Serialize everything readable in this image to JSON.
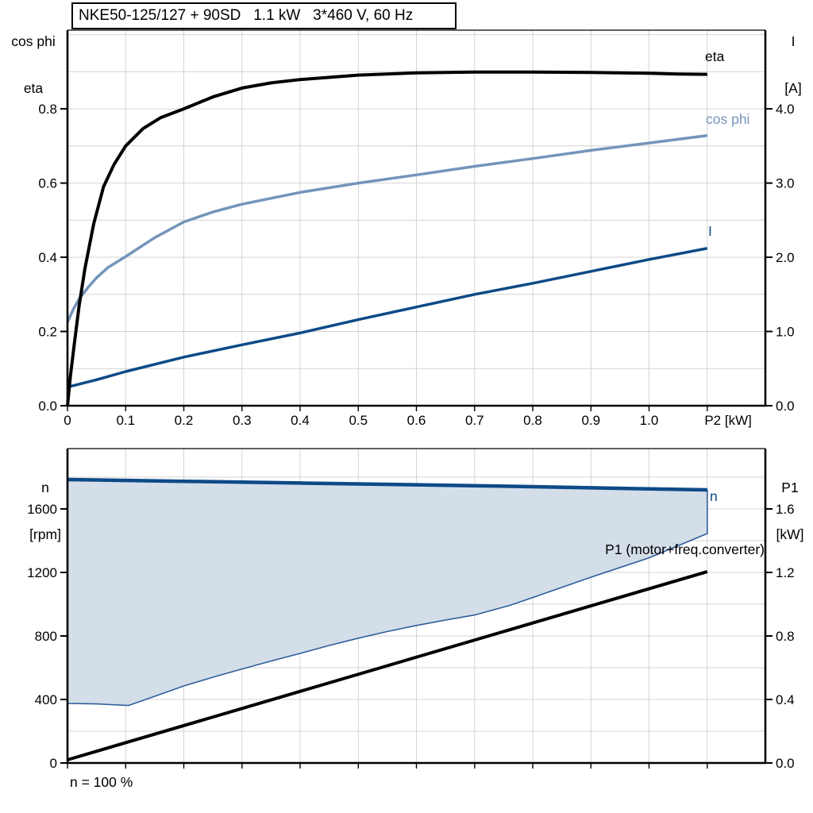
{
  "title_box": {
    "text": "NKE50-125/127 + 90SD   1.1 kW   3*460 V, 60 Hz"
  },
  "colors": {
    "black": "#000000",
    "navy": "#0d4a87",
    "steel": "#7495ba",
    "fill": "#d3dee9",
    "fill_edge": "#2e5d99",
    "grid": "#d4d4d4",
    "frame": "#000000"
  },
  "axis_corner_labels": {
    "top_left": [
      "cos phi",
      "eta"
    ],
    "top_right": [
      "I",
      "[A]"
    ],
    "bottom_left": [
      "n",
      "[rpm]"
    ],
    "bottom_right": [
      "P1",
      "[kW]"
    ]
  },
  "curve_labels": {
    "eta": "eta",
    "cos_phi": "cos phi",
    "current": "I",
    "speed": "n",
    "p1": "P1 (motor+freq.converter)"
  },
  "annotation": {
    "speed_100": "n = 100 %"
  },
  "chart_data": [
    {
      "type": "line",
      "title": "NKE50-125/127 + 90SD 1.1 kW 3*460 V, 60 Hz",
      "x_axis": {
        "min": 0,
        "max": 1.2,
        "ticks": [
          0,
          0.1,
          0.2,
          0.3,
          0.4,
          0.5,
          0.6,
          0.7,
          0.8,
          0.9,
          1.0,
          1.1
        ],
        "tick_labels": [
          "0",
          "0.1",
          "0.2",
          "0.3",
          "0.4",
          "0.5",
          "0.6",
          "0.7",
          "0.8",
          "0.9",
          "1.0"
        ],
        "grid": [
          0.1,
          0.2,
          0.3,
          0.4,
          0.5,
          0.6,
          0.7,
          0.8,
          0.9,
          1.0,
          1.1
        ],
        "unit_label": "P2 [kW]",
        "unit_label_value": 1.136
      },
      "left_axis": {
        "min": 0,
        "max": 1.012,
        "ticks": [
          0,
          0.2,
          0.4,
          0.6,
          0.8
        ],
        "tick_labels": [
          "0.0",
          "0.2",
          "0.4",
          "0.6",
          "0.8"
        ],
        "grid": [
          0.1,
          0.2,
          0.3,
          0.4,
          0.5,
          0.6,
          0.7,
          0.8,
          0.9,
          1.0
        ]
      },
      "right_axis": {
        "min": 0,
        "max": 5.06,
        "ticks": [
          0,
          1,
          2,
          3,
          4
        ],
        "tick_labels": [
          "0.0",
          "1.0",
          "2.0",
          "3.0",
          "4.0"
        ]
      },
      "series": [
        {
          "name": "I",
          "label": "I",
          "axis": "right",
          "color_key": "navy",
          "width": 3.5,
          "x": [
            0,
            0.05,
            0.1,
            0.2,
            0.3,
            0.4,
            0.5,
            0.6,
            0.7,
            0.8,
            0.9,
            1.0,
            1.1
          ],
          "y": [
            0.25,
            0.35,
            0.46,
            0.655,
            0.82,
            0.98,
            1.16,
            1.33,
            1.5,
            1.65,
            1.81,
            1.97,
            2.12
          ]
        },
        {
          "name": "cos phi",
          "label": "cos phi",
          "axis": "left",
          "color_key": "steel",
          "width": 3.5,
          "x": [
            0,
            0.01,
            0.02,
            0.035,
            0.05,
            0.07,
            0.1,
            0.15,
            0.2,
            0.25,
            0.3,
            0.4,
            0.5,
            0.6,
            0.7,
            0.8,
            0.9,
            1.0,
            1.1
          ],
          "y": [
            0.225,
            0.26,
            0.288,
            0.318,
            0.345,
            0.373,
            0.402,
            0.453,
            0.495,
            0.522,
            0.543,
            0.575,
            0.6,
            0.622,
            0.645,
            0.666,
            0.688,
            0.708,
            0.728
          ]
        },
        {
          "name": "eta",
          "label": "eta",
          "axis": "left",
          "color_key": "black",
          "width": 4,
          "x": [
            0,
            0.005,
            0.012,
            0.02,
            0.03,
            0.045,
            0.062,
            0.08,
            0.1,
            0.13,
            0.16,
            0.2,
            0.25,
            0.3,
            0.35,
            0.4,
            0.5,
            0.6,
            0.7,
            0.8,
            0.9,
            1.0,
            1.05,
            1.1
          ],
          "y": [
            0,
            0.08,
            0.17,
            0.27,
            0.37,
            0.49,
            0.59,
            0.65,
            0.7,
            0.747,
            0.776,
            0.8,
            0.832,
            0.856,
            0.87,
            0.879,
            0.891,
            0.897,
            0.899,
            0.899,
            0.898,
            0.896,
            0.894,
            0.893
          ]
        }
      ]
    },
    {
      "type": "line+area",
      "title": "Speed and input power",
      "x_axis": {
        "min": 0,
        "max": 1.2,
        "ticks": [
          0,
          0.1,
          0.2,
          0.3,
          0.4,
          0.5,
          0.6,
          0.7,
          0.8,
          0.9,
          1.0,
          1.1
        ],
        "tick_labels": [],
        "grid": [
          0.1,
          0.2,
          0.3,
          0.4,
          0.5,
          0.6,
          0.7,
          0.8,
          0.9,
          1.0,
          1.1
        ]
      },
      "left_axis": {
        "min": 0,
        "max": 1980,
        "ticks": [
          0,
          400,
          800,
          1200,
          1600
        ],
        "tick_labels": [
          "0",
          "400",
          "800",
          "1200",
          "1600"
        ],
        "grid": [
          200,
          400,
          600,
          800,
          1000,
          1200,
          1400,
          1600,
          1800
        ]
      },
      "right_axis": {
        "min": 0,
        "max": 1.98,
        "ticks": [
          0,
          0.4,
          0.8,
          1.2,
          1.6
        ],
        "tick_labels": [
          "0.0",
          "0.4",
          "0.8",
          "1.2",
          "1.6"
        ]
      },
      "area": {
        "upper": "n",
        "lower": "n_min",
        "fill_key": "fill",
        "edge_key": "fill_edge"
      },
      "series": [
        {
          "name": "n",
          "label": "n",
          "axis": "left",
          "color_key": "navy",
          "width": 4.5,
          "x": [
            0,
            0.2,
            0.4,
            0.6,
            0.8,
            1.0,
            1.1
          ],
          "y": [
            1785,
            1774,
            1763,
            1752,
            1740,
            1726,
            1720
          ]
        },
        {
          "name": "n_min",
          "label": "",
          "axis": "left",
          "color_key": "fill_edge",
          "width": 1.6,
          "role": "boundary",
          "x": [
            0,
            0.05,
            0.105,
            0.15,
            0.2,
            0.25,
            0.3,
            0.35,
            0.4,
            0.45,
            0.5,
            0.55,
            0.6,
            0.65,
            0.7,
            0.76,
            0.8,
            0.9,
            1.0,
            1.1
          ],
          "y": [
            375,
            372,
            362,
            420,
            485,
            540,
            592,
            642,
            690,
            740,
            786,
            828,
            866,
            900,
            932,
            992,
            1042,
            1170,
            1292,
            1445
          ]
        },
        {
          "name": "P1",
          "label": "P1 (motor+freq.converter)",
          "axis": "right",
          "color_key": "black",
          "width": 4,
          "x": [
            0,
            1.1
          ],
          "y": [
            0.02,
            1.205
          ]
        }
      ]
    }
  ]
}
